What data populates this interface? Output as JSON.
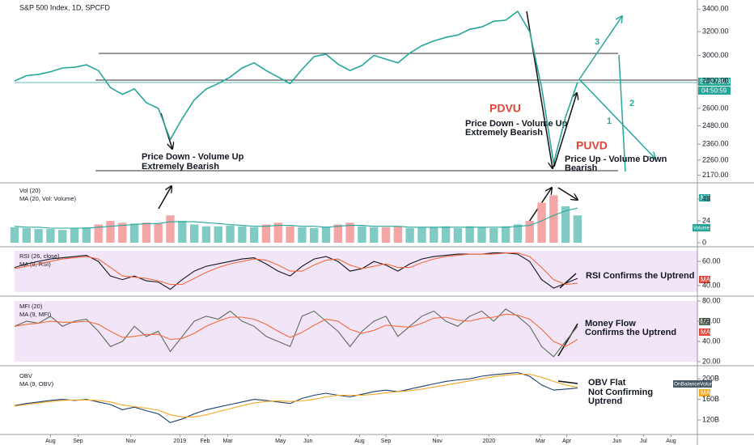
{
  "chart_data": [
    {
      "type": "line",
      "title": "S&P 500 Index, 1D, SPCFD",
      "log": true,
      "x": [
        0,
        1,
        2,
        3,
        4,
        5,
        6,
        7,
        8,
        9,
        10,
        11,
        12,
        13,
        14,
        15,
        16,
        17,
        18,
        19,
        20,
        21,
        22,
        23,
        24,
        25,
        26,
        27,
        28,
        29,
        30,
        31,
        32,
        33,
        34,
        35,
        36,
        37,
        38,
        39,
        40,
        41,
        42,
        43,
        44,
        45,
        46,
        47
      ],
      "series": [
        {
          "name": "SPX",
          "color": "#26a69a",
          "values": [
            2800,
            2840,
            2850,
            2870,
            2900,
            2905,
            2925,
            2880,
            2750,
            2700,
            2740,
            2640,
            2600,
            2390,
            2530,
            2660,
            2740,
            2780,
            2830,
            2900,
            2940,
            2880,
            2830,
            2780,
            2890,
            2990,
            3010,
            2930,
            2880,
            2920,
            3000,
            2970,
            2940,
            3020,
            3080,
            3120,
            3150,
            3170,
            3220,
            3240,
            3290,
            3300,
            3380,
            3200,
            2750,
            2240,
            2540,
            2790
          ]
        }
      ],
      "xlim": [
        0,
        57
      ],
      "ylim": [
        2130,
        3470
      ],
      "yticks": [
        {
          "value": 3400,
          "label": "3400.00"
        },
        {
          "value": 3200,
          "label": "3200.00"
        },
        {
          "value": 3000,
          "label": "3000.00"
        },
        {
          "value": 2800,
          "label": "2800.00"
        },
        {
          "value": 2600,
          "label": "2600.00"
        },
        {
          "value": 2480,
          "label": "2480.00"
        },
        {
          "value": 2360,
          "label": "2360.00"
        },
        {
          "value": 2260,
          "label": "2260.00"
        },
        {
          "value": 2170,
          "label": "2170.00"
        }
      ]
    },
    {
      "type": "bar",
      "up_color": "#80cbc4",
      "down_color": "#f4a6a6",
      "x": [
        0,
        1,
        2,
        3,
        4,
        5,
        6,
        7,
        8,
        9,
        10,
        11,
        12,
        13,
        14,
        15,
        16,
        17,
        18,
        19,
        20,
        21,
        22,
        23,
        24,
        25,
        26,
        27,
        28,
        29,
        30,
        31,
        32,
        33,
        34,
        35,
        36,
        37,
        38,
        39,
        40,
        41,
        42,
        43,
        44,
        45,
        46,
        47
      ],
      "series": [
        {
          "name": "Vol (20)",
          "values": [
            17,
            16,
            15,
            15,
            14,
            16,
            17,
            20,
            24,
            22,
            21,
            22,
            21,
            30,
            24,
            20,
            18,
            18,
            19,
            18,
            17,
            20,
            22,
            18,
            17,
            16,
            17,
            20,
            22,
            18,
            17,
            17,
            18,
            16,
            17,
            17,
            18,
            16,
            18,
            17,
            16,
            18,
            20,
            24,
            44,
            52,
            40,
            30
          ]
        },
        {
          "name": "MA (20, Vol: Volume)",
          "color": "#26a69a",
          "values": [
            18,
            17,
            17,
            16,
            16,
            16,
            16,
            17,
            18,
            19,
            20,
            21,
            21,
            23,
            23,
            23,
            22,
            21,
            20,
            19,
            18,
            18,
            19,
            19,
            18,
            18,
            17,
            18,
            19,
            19,
            18,
            18,
            18,
            17,
            17,
            17,
            17,
            17,
            17,
            17,
            17,
            17,
            18,
            19,
            24,
            30,
            35,
            38
          ]
        }
      ],
      "xlim": [
        0,
        57
      ],
      "ylim": [
        0,
        63
      ],
      "yticks": [
        0,
        24,
        48
      ]
    },
    {
      "type": "line",
      "x": [
        0,
        1,
        2,
        3,
        4,
        5,
        6,
        7,
        8,
        9,
        10,
        11,
        12,
        13,
        14,
        15,
        16,
        17,
        18,
        19,
        20,
        21,
        22,
        23,
        24,
        25,
        26,
        27,
        28,
        29,
        30,
        31,
        32,
        33,
        34,
        35,
        36,
        37,
        38,
        39,
        40,
        41,
        42,
        43,
        44,
        45,
        46,
        47
      ],
      "series": [
        {
          "name": "RSI (26, close)",
          "color": "#131722",
          "values": [
            55,
            58,
            60,
            62,
            63,
            64,
            65,
            60,
            48,
            45,
            48,
            44,
            43,
            37,
            45,
            52,
            56,
            58,
            60,
            62,
            63,
            58,
            52,
            48,
            56,
            62,
            64,
            60,
            52,
            54,
            60,
            57,
            52,
            58,
            62,
            64,
            65,
            66,
            66,
            66,
            67,
            67,
            66,
            60,
            45,
            38,
            42,
            46
          ]
        },
        {
          "name": "MA (9, RSI)",
          "color": "#f26b3a",
          "values": [
            54,
            56,
            58,
            60,
            62,
            63,
            64,
            62,
            55,
            48,
            47,
            46,
            44,
            41,
            41,
            46,
            51,
            55,
            58,
            60,
            62,
            61,
            57,
            52,
            52,
            57,
            61,
            62,
            57,
            54,
            56,
            58,
            55,
            55,
            59,
            62,
            64,
            65,
            66,
            66,
            66,
            67,
            67,
            64,
            55,
            45,
            41,
            42
          ]
        }
      ],
      "xlim": [
        0,
        57
      ],
      "ylim": [
        34.7,
        68.7
      ],
      "yticks": [
        {
          "value": 60,
          "label": "60.00"
        },
        {
          "value": 40,
          "label": "40.00"
        }
      ]
    },
    {
      "type": "line",
      "x": [
        0,
        1,
        2,
        3,
        4,
        5,
        6,
        7,
        8,
        9,
        10,
        11,
        12,
        13,
        14,
        15,
        16,
        17,
        18,
        19,
        20,
        21,
        22,
        23,
        24,
        25,
        26,
        27,
        28,
        29,
        30,
        31,
        32,
        33,
        34,
        35,
        36,
        37,
        38,
        39,
        40,
        41,
        42,
        43,
        44,
        45,
        46,
        47
      ],
      "series": [
        {
          "name": "MFI (20)",
          "color": "#5b6e5a",
          "values": [
            55,
            60,
            58,
            65,
            55,
            60,
            62,
            50,
            35,
            40,
            55,
            45,
            50,
            30,
            45,
            60,
            65,
            62,
            70,
            60,
            55,
            45,
            40,
            35,
            65,
            70,
            60,
            50,
            35,
            50,
            60,
            65,
            45,
            55,
            65,
            70,
            60,
            55,
            65,
            70,
            60,
            72,
            65,
            55,
            35,
            25,
            40,
            55
          ]
        },
        {
          "name": "MA (9, MFI)",
          "color": "#f26b3a",
          "values": [
            55,
            57,
            58,
            60,
            59,
            59,
            60,
            57,
            50,
            44,
            45,
            47,
            47,
            42,
            43,
            48,
            55,
            60,
            64,
            64,
            62,
            57,
            50,
            44,
            49,
            56,
            62,
            60,
            52,
            48,
            51,
            56,
            55,
            54,
            58,
            63,
            64,
            61,
            60,
            63,
            64,
            67,
            66,
            62,
            52,
            40,
            35,
            42
          ]
        }
      ],
      "xlim": [
        0,
        57
      ],
      "ylim": [
        20,
        80
      ],
      "yticks": [
        {
          "value": 80,
          "label": "80.00"
        },
        {
          "value": 60,
          "label": "60.00"
        },
        {
          "value": 40,
          "label": "40.00"
        },
        {
          "value": 20,
          "label": "20.00"
        }
      ]
    },
    {
      "type": "line",
      "x": [
        0,
        1,
        2,
        3,
        4,
        5,
        6,
        7,
        8,
        9,
        10,
        11,
        12,
        13,
        14,
        15,
        16,
        17,
        18,
        19,
        20,
        21,
        22,
        23,
        24,
        25,
        26,
        27,
        28,
        29,
        30,
        31,
        32,
        33,
        34,
        35,
        36,
        37,
        38,
        39,
        40,
        41,
        42,
        43,
        44,
        45,
        46,
        47
      ],
      "series": [
        {
          "name": "OBV",
          "color": "#1c3f6e",
          "values": [
            148,
            152,
            155,
            158,
            160,
            158,
            160,
            155,
            150,
            140,
            145,
            138,
            132,
            115,
            122,
            132,
            140,
            145,
            150,
            155,
            160,
            158,
            155,
            152,
            162,
            168,
            172,
            168,
            165,
            170,
            175,
            178,
            175,
            180,
            185,
            190,
            195,
            198,
            200,
            205,
            208,
            210,
            212,
            205,
            188,
            178,
            180,
            182
          ]
        },
        {
          "name": "MA (9, OBV)",
          "color": "#f5a623",
          "values": [
            147,
            150,
            153,
            156,
            158,
            159,
            159,
            158,
            155,
            149,
            146,
            143,
            139,
            130,
            126,
            126,
            130,
            136,
            142,
            148,
            153,
            156,
            157,
            156,
            157,
            160,
            165,
            168,
            168,
            168,
            170,
            173,
            175,
            177,
            180,
            184,
            188,
            192,
            196,
            200,
            204,
            207,
            209,
            209,
            203,
            195,
            188,
            184
          ]
        }
      ],
      "xlim": [
        0,
        57
      ],
      "ylim": [
        95,
        216
      ],
      "yticks": [
        {
          "value": 200,
          "label": "200B"
        },
        {
          "value": 160,
          "label": "160B"
        },
        {
          "value": 120,
          "label": "120B"
        }
      ],
      "xticks": [
        {
          "value": 3.0,
          "label": "Aug"
        },
        {
          "value": 5.3,
          "label": "Sep"
        },
        {
          "value": 9.7,
          "label": "Nov"
        },
        {
          "value": 13.8,
          "label": "2019"
        },
        {
          "value": 15.9,
          "label": "Feb"
        },
        {
          "value": 17.8,
          "label": "Mar"
        },
        {
          "value": 22.2,
          "label": "May"
        },
        {
          "value": 24.5,
          "label": "Jun"
        },
        {
          "value": 28.8,
          "label": "Aug"
        },
        {
          "value": 31.0,
          "label": "Sep"
        },
        {
          "value": 35.3,
          "label": "Nov"
        },
        {
          "value": 39.6,
          "label": "2020"
        },
        {
          "value": 43.9,
          "label": "Mar"
        },
        {
          "value": 46.1,
          "label": "Apr"
        },
        {
          "value": 50.3,
          "label": "Jun"
        },
        {
          "value": 52.5,
          "label": "Jul"
        },
        {
          "value": 54.8,
          "label": "Aug"
        }
      ]
    }
  ],
  "annotations": {
    "left_1": "Price Down - Volume Up",
    "left_2": "Extremely Bearish",
    "pdvu": "PDVU",
    "pdvu_1": "Price Down - Volume Up",
    "pdvu_2": "Extremely Bearish",
    "puvd": "PUVD",
    "puvd_1": "Price Up - Volume Down",
    "puvd_2": "Bearish",
    "rsi": "RSI Confirms the Uptrend",
    "mfi_1": "Money Flow",
    "mfi_2": "Confirms the Uptrend",
    "obv_1": "OBV Flat",
    "obv_2": "Not Confirming",
    "obv_3": "Uptrend",
    "wave_1": "1",
    "wave_2": "2",
    "wave_3": "3"
  },
  "badges": {
    "price": "2789.82",
    "countdown": "04:50:59",
    "vol_ma": "MA",
    "vol": "Volume",
    "rsi_ma": "MA",
    "mfi": "MF",
    "mfi_ma": "MA",
    "obv": "OnBalanceVolume",
    "obv_ma": "MA"
  }
}
